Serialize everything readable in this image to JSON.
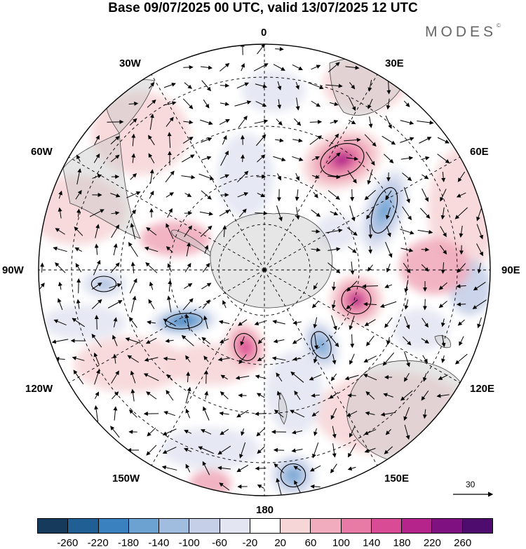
{
  "title": "Base 09/07/2025 00 UTC, valid 13/07/2025 12 UTC",
  "brand": {
    "name": "MODES",
    "mark": "©"
  },
  "map": {
    "projection": "south polar stereographic",
    "meridian_labels": [
      "0",
      "30E",
      "60E",
      "90E",
      "120E",
      "150E",
      "180",
      "150W",
      "120W",
      "90W",
      "60W",
      "30W"
    ],
    "reference_vector_label": "30",
    "anomaly_features": [
      {
        "name": "positive-core-south-atlantic",
        "level": 180,
        "sign": "positive"
      },
      {
        "name": "negative-core-indian-ocean",
        "level": -160,
        "sign": "negative"
      },
      {
        "name": "positive-core-near-90e",
        "level": 180,
        "sign": "positive"
      },
      {
        "name": "negative-core-south-of-australia",
        "level": -180,
        "sign": "negative"
      },
      {
        "name": "negative-core-south-pacific",
        "level": -220,
        "sign": "negative"
      },
      {
        "name": "positive-core-ross-sea",
        "level": 140,
        "sign": "positive"
      },
      {
        "name": "negative-core-near-180",
        "level": -180,
        "sign": "negative"
      },
      {
        "name": "negative-core-amundsen",
        "level": -120,
        "sign": "negative"
      }
    ]
  },
  "colorbar": {
    "tick_labels": [
      "-260",
      "-220",
      "-180",
      "-140",
      "-100",
      "-60",
      "-20",
      "20",
      "60",
      "100",
      "140",
      "180",
      "220",
      "260"
    ],
    "colors": [
      "#163a5c",
      "#1f5f94",
      "#3a81c0",
      "#6ba2d1",
      "#a0bde0",
      "#c5cfe8",
      "#e3e6f2",
      "#ffffff",
      "#f7d6d8",
      "#f1acbd",
      "#e87aa6",
      "#d94c95",
      "#b4248a",
      "#7f1280",
      "#4e0d6e"
    ]
  }
}
